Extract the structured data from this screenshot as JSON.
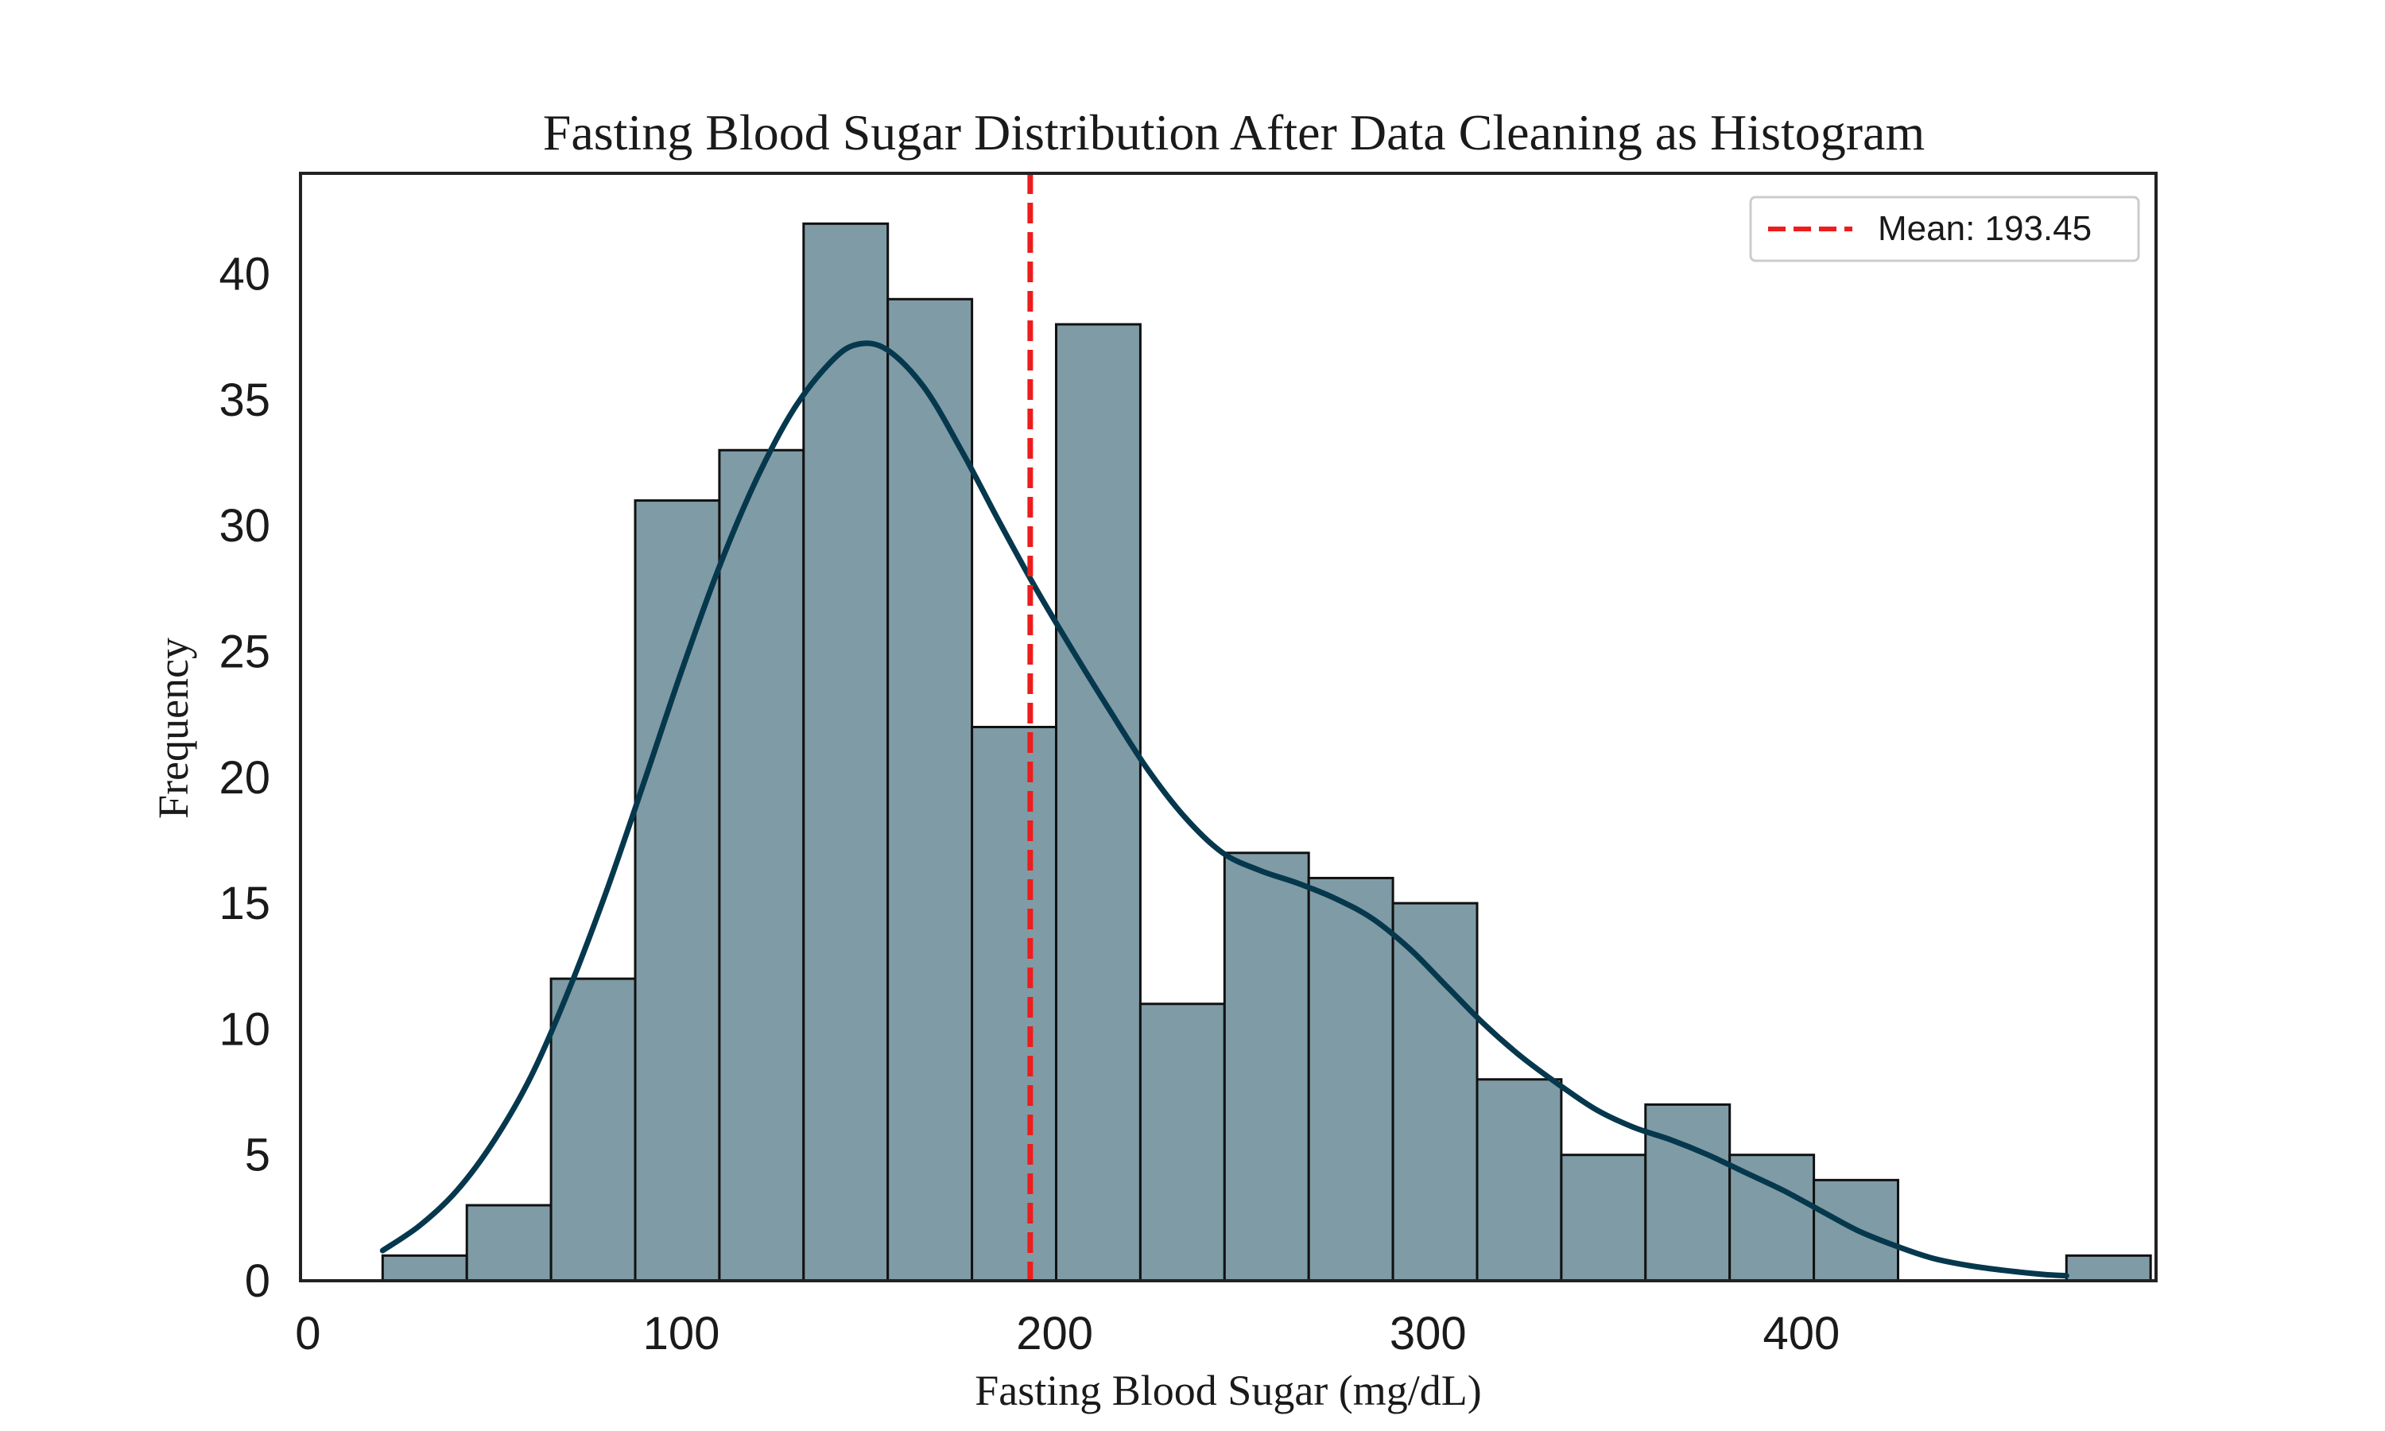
{
  "chart_data": {
    "type": "bar",
    "title": "Fasting Blood Sugar Distribution After Data Cleaning as Histogram",
    "xlabel": "Fasting Blood Sugar (mg/dL)",
    "ylabel": "Frequency",
    "xlim": [
      -2,
      495
    ],
    "ylim": [
      0,
      44
    ],
    "xticks": [
      0,
      100,
      200,
      300,
      400
    ],
    "yticks": [
      0,
      5,
      10,
      15,
      20,
      25,
      30,
      35,
      40
    ],
    "bin_start": 20,
    "bin_width": 22.55,
    "counts": [
      1,
      3,
      12,
      31,
      33,
      42,
      39,
      22,
      38,
      11,
      17,
      16,
      15,
      8,
      5,
      7,
      5,
      4,
      0,
      0,
      1
    ],
    "kde": {
      "x": [
        20,
        30,
        40,
        50,
        60,
        70,
        80,
        90,
        100,
        110,
        120,
        130,
        140,
        147,
        155,
        165,
        175,
        185,
        195,
        205,
        215,
        225,
        235,
        245,
        255,
        265,
        275,
        285,
        295,
        305,
        315,
        325,
        335,
        345,
        355,
        365,
        375,
        385,
        395,
        405,
        415,
        425,
        435,
        445,
        455,
        465,
        471
      ],
      "y": [
        1.2,
        2.2,
        3.6,
        5.6,
        8.2,
        11.6,
        15.5,
        19.8,
        24.2,
        28.3,
        31.8,
        34.6,
        36.5,
        37.2,
        37.0,
        35.5,
        33.0,
        30.2,
        27.5,
        25.0,
        22.6,
        20.3,
        18.4,
        17.0,
        16.3,
        15.8,
        15.2,
        14.4,
        13.2,
        11.7,
        10.2,
        8.9,
        7.8,
        6.8,
        6.1,
        5.6,
        5.0,
        4.3,
        3.6,
        2.8,
        2.0,
        1.4,
        0.9,
        0.6,
        0.4,
        0.25,
        0.2
      ]
    },
    "mean": 193.45,
    "legend": {
      "label": "Mean: 193.45",
      "placement": "top-right"
    },
    "grid": false,
    "colors": {
      "bar_fill": "#7f9ba6",
      "bar_edge": "#111111",
      "kde_line": "#06384d",
      "mean_line": "#ee1c1c",
      "axes": "#222222"
    }
  }
}
